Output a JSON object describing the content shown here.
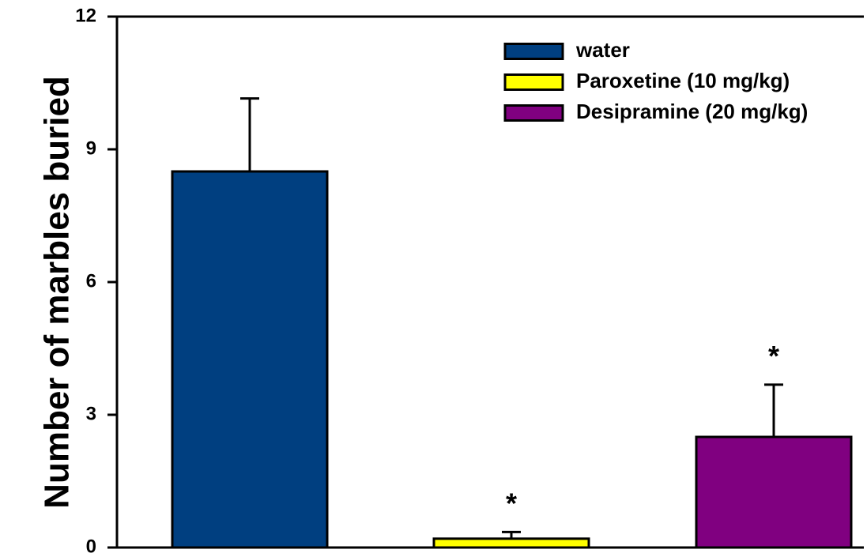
{
  "chart_data": {
    "type": "bar",
    "categories": [
      "water",
      "Paroxetine (10 mg/kg)",
      "Desipramine (20 mg/kg)"
    ],
    "series": [
      {
        "name": "water",
        "value": 8.5,
        "error": 1.65,
        "color": "#003f80",
        "significance": ""
      },
      {
        "name": "Paroxetine (10 mg/kg)",
        "value": 0.2,
        "error": 0.15,
        "color": "#ffff00",
        "significance": "*"
      },
      {
        "name": "Desipramine (20 mg/kg)",
        "value": 2.5,
        "error": 1.18,
        "color": "#800080",
        "significance": "*"
      }
    ],
    "ylabel": "Number of marbles buried",
    "ylim": [
      0,
      12
    ],
    "yticks": [
      0,
      3,
      6,
      9,
      12
    ],
    "legend_position": "top-right",
    "grid": false
  }
}
